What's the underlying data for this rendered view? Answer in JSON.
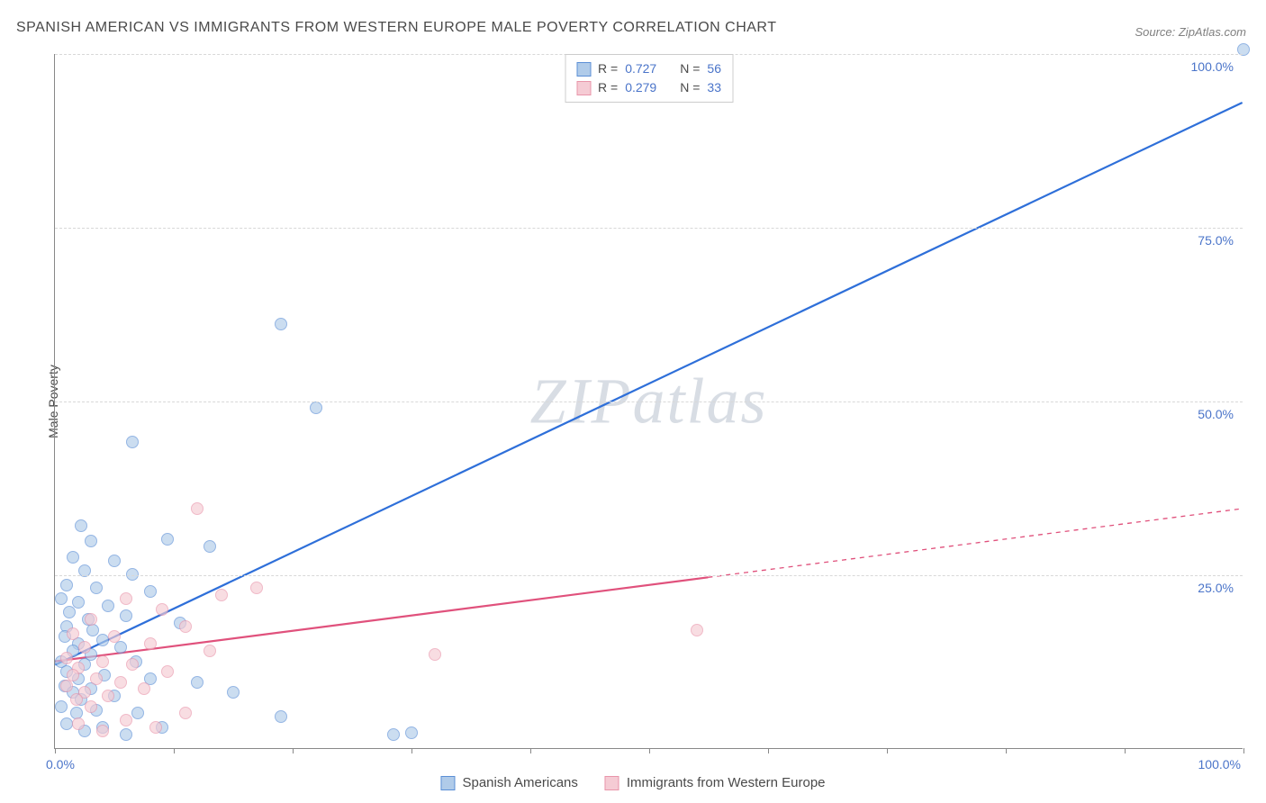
{
  "title": "SPANISH AMERICAN VS IMMIGRANTS FROM WESTERN EUROPE MALE POVERTY CORRELATION CHART",
  "source": "Source: ZipAtlas.com",
  "ylabel": "Male Poverty",
  "watermark_a": "ZIP",
  "watermark_b": "atlas",
  "chart": {
    "type": "scatter",
    "xlim": [
      0,
      100
    ],
    "ylim": [
      0,
      100
    ],
    "x_ticks": [
      0,
      10,
      20,
      30,
      40,
      50,
      60,
      70,
      80,
      90,
      100
    ],
    "y_gridlines": [
      25,
      50,
      75,
      100
    ],
    "x_tick_labels": {
      "0": "0.0%",
      "100": "100.0%"
    },
    "y_tick_labels": {
      "25": "25.0%",
      "50": "50.0%",
      "75": "75.0%",
      "100": "100.0%"
    },
    "background_color": "#ffffff",
    "grid_color": "#d8d8d8",
    "axis_color": "#888888",
    "tick_label_color": "#4a74c9",
    "title_color": "#4a4a4a",
    "title_fontsize": 16,
    "label_fontsize": 14
  },
  "series": [
    {
      "name": "Spanish Americans",
      "color_fill": "#b0cbe9",
      "color_stroke": "#5b8fd6",
      "line_color": "#2e6fd9",
      "line_width": 2.2,
      "marker_radius": 7,
      "fill_opacity": 0.65,
      "R": "0.727",
      "N": "56",
      "regression": {
        "x1": 0,
        "y1": 12,
        "x2": 100,
        "y2": 93,
        "extrap_from_x": 100,
        "dash": "none"
      },
      "points": [
        [
          100,
          100.5
        ],
        [
          19,
          61
        ],
        [
          22,
          49
        ],
        [
          6.5,
          44
        ],
        [
          2.2,
          32
        ],
        [
          3,
          29.8
        ],
        [
          9.5,
          30
        ],
        [
          13,
          29
        ],
        [
          1.5,
          27.5
        ],
        [
          5,
          27
        ],
        [
          2.5,
          25.5
        ],
        [
          6.5,
          25
        ],
        [
          1,
          23.5
        ],
        [
          3.5,
          23
        ],
        [
          8,
          22.5
        ],
        [
          0.5,
          21.5
        ],
        [
          2,
          21
        ],
        [
          4.5,
          20.5
        ],
        [
          1.2,
          19.5
        ],
        [
          6,
          19
        ],
        [
          2.8,
          18.5
        ],
        [
          1,
          17.5
        ],
        [
          3.2,
          17
        ],
        [
          10.5,
          18
        ],
        [
          0.8,
          16
        ],
        [
          4,
          15.5
        ],
        [
          2,
          15
        ],
        [
          5.5,
          14.5
        ],
        [
          1.5,
          14
        ],
        [
          3,
          13.5
        ],
        [
          0.5,
          12.5
        ],
        [
          2.5,
          12
        ],
        [
          6.8,
          12.5
        ],
        [
          1,
          11
        ],
        [
          4.2,
          10.5
        ],
        [
          2,
          10
        ],
        [
          8,
          10
        ],
        [
          12,
          9.5
        ],
        [
          0.8,
          9
        ],
        [
          3,
          8.5
        ],
        [
          1.5,
          8
        ],
        [
          5,
          7.5
        ],
        [
          2.2,
          7
        ],
        [
          15,
          8
        ],
        [
          0.5,
          6
        ],
        [
          3.5,
          5.5
        ],
        [
          1.8,
          5
        ],
        [
          7,
          5
        ],
        [
          19,
          4.5
        ],
        [
          1,
          3.5
        ],
        [
          4,
          3
        ],
        [
          2.5,
          2.5
        ],
        [
          9,
          3
        ],
        [
          6,
          2
        ],
        [
          28.5,
          2
        ],
        [
          30,
          2.2
        ]
      ]
    },
    {
      "name": "Immigrants from Western Europe",
      "color_fill": "#f5cbd4",
      "color_stroke": "#e995aa",
      "line_color": "#e0517c",
      "line_width": 2.2,
      "marker_radius": 7,
      "fill_opacity": 0.65,
      "R": "0.279",
      "N": "33",
      "regression": {
        "x1": 0,
        "y1": 12.5,
        "x2": 100,
        "y2": 34.5,
        "extrap_from_x": 55,
        "dash": "5,5"
      },
      "points": [
        [
          54,
          17
        ],
        [
          32,
          13.5
        ],
        [
          12,
          34.5
        ],
        [
          17,
          23
        ],
        [
          14,
          22
        ],
        [
          6,
          21.5
        ],
        [
          9,
          20
        ],
        [
          3,
          18.5
        ],
        [
          11,
          17.5
        ],
        [
          1.5,
          16.5
        ],
        [
          5,
          16
        ],
        [
          8,
          15
        ],
        [
          2.5,
          14.5
        ],
        [
          13,
          14
        ],
        [
          1,
          13
        ],
        [
          4,
          12.5
        ],
        [
          6.5,
          12
        ],
        [
          2,
          11.5
        ],
        [
          9.5,
          11
        ],
        [
          1.5,
          10.5
        ],
        [
          3.5,
          10
        ],
        [
          5.5,
          9.5
        ],
        [
          1,
          9
        ],
        [
          7.5,
          8.5
        ],
        [
          2.5,
          8
        ],
        [
          4.5,
          7.5
        ],
        [
          1.8,
          7
        ],
        [
          3,
          6
        ],
        [
          11,
          5
        ],
        [
          6,
          4
        ],
        [
          2,
          3.5
        ],
        [
          8.5,
          3
        ],
        [
          4,
          2.5
        ]
      ]
    }
  ],
  "legend_top": {
    "R_label": "R =",
    "N_label": "N ="
  },
  "legend_bottom": {
    "s1": "Spanish Americans",
    "s2": "Immigrants from Western Europe"
  }
}
